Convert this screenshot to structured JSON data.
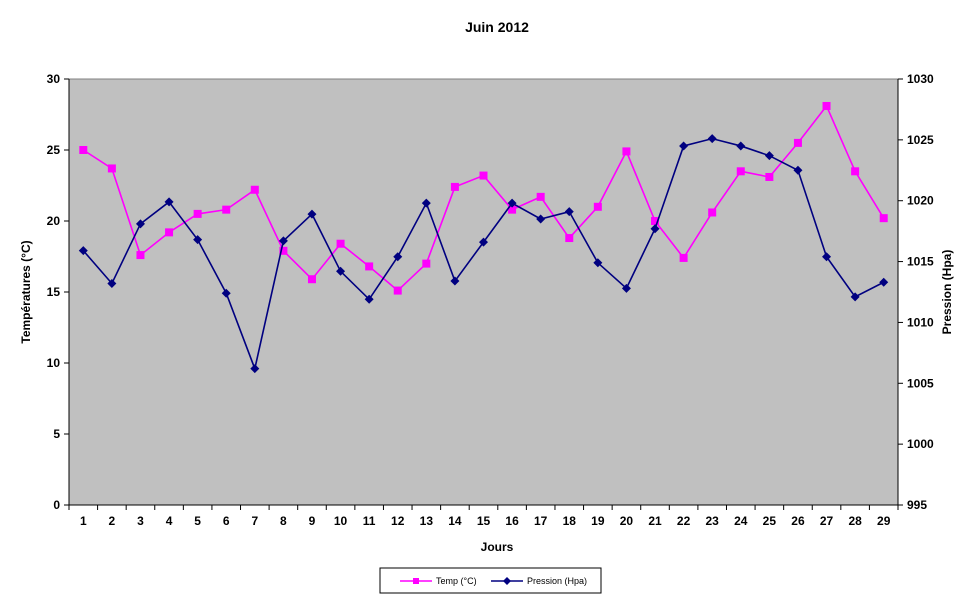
{
  "chart_data": {
    "type": "line",
    "title": "Juin 2012",
    "xlabel": "Jours",
    "ylabel_left": "Températures  (°C)",
    "ylabel_right": "Pression  (Hpa)",
    "x": [
      "1",
      "2",
      "3",
      "4",
      "5",
      "6",
      "7",
      "8",
      "9",
      "10",
      "11",
      "12",
      "13",
      "14",
      "15",
      "16",
      "17",
      "18",
      "19",
      "20",
      "21",
      "22",
      "23",
      "24",
      "25",
      "26",
      "27",
      "28",
      "29"
    ],
    "y_left": {
      "min": 0,
      "max": 30,
      "step": 5,
      "ticks": [
        "0",
        "5",
        "10",
        "15",
        "20",
        "25",
        "30"
      ]
    },
    "y_right": {
      "min": 995,
      "max": 1030,
      "step": 5,
      "ticks": [
        "995",
        "1000",
        "1005",
        "1010",
        "1015",
        "1020",
        "1025",
        "1030"
      ]
    },
    "series": [
      {
        "name": "Temp (°C)",
        "axis": "left",
        "color": "#ff00ff",
        "marker": "square",
        "values": [
          25.0,
          23.7,
          17.6,
          19.2,
          20.5,
          20.8,
          22.2,
          17.9,
          15.9,
          18.4,
          16.8,
          15.1,
          17.0,
          22.4,
          23.2,
          20.8,
          21.7,
          18.8,
          21.0,
          24.9,
          20.0,
          17.4,
          20.6,
          23.5,
          23.1,
          25.5,
          28.1,
          23.5,
          20.2
        ]
      },
      {
        "name": "Pression (Hpa)",
        "axis": "right",
        "color": "#000080",
        "marker": "diamond",
        "values": [
          1015.9,
          1013.2,
          1018.1,
          1019.9,
          1016.8,
          1012.4,
          1006.2,
          1016.7,
          1018.9,
          1014.2,
          1011.9,
          1015.4,
          1019.8,
          1013.4,
          1016.6,
          1019.8,
          1018.5,
          1019.1,
          1014.9,
          1012.8,
          1017.7,
          1024.5,
          1025.1,
          1024.5,
          1023.7,
          1022.5,
          1015.4,
          1012.1,
          1013.3
        ]
      }
    ],
    "plot_background": "#c0c0c0",
    "grid": false,
    "legend_position": "bottom-center"
  }
}
